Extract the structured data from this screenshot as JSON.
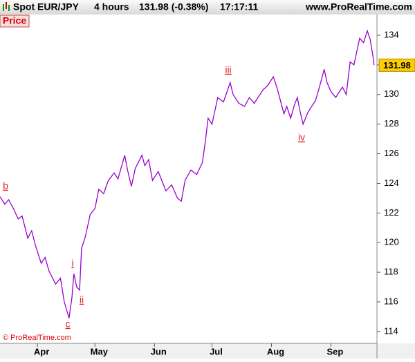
{
  "header": {
    "symbol": "Spot EUR/JPY",
    "period": "4 hours",
    "quote": "131.98 (-0.38%)",
    "time": "17:17:11",
    "site": "www.ProRealTime.com"
  },
  "chart_data": {
    "type": "line",
    "panel_label": "Price",
    "copyright": "© ProRealTime.com",
    "last_price_label": "131.98",
    "annotations": [
      "b",
      "c",
      "i",
      "ii",
      "iii",
      "iv"
    ],
    "color": "#9900cc",
    "x": [
      -19.5,
      -17,
      -15,
      -12.5,
      -10,
      -8,
      -5,
      -3,
      -1,
      2,
      4,
      6,
      9.5,
      12,
      14,
      16.5,
      18,
      19,
      20.5,
      22,
      23,
      25,
      27.5,
      30,
      32,
      34.5,
      37,
      40,
      42,
      45.5,
      47,
      49,
      51,
      54.5,
      56,
      58,
      60,
      63,
      67,
      70,
      73,
      75,
      77,
      80,
      83,
      86,
      87.5,
      89,
      91,
      94,
      97,
      100.5,
      102,
      105,
      108,
      110.5,
      113,
      117.5,
      120,
      123,
      125,
      128.5,
      130,
      132,
      134,
      135.5,
      137,
      138.5,
      141,
      145,
      147,
      149.5,
      151,
      153,
      155.5,
      157,
      159,
      161,
      163,
      165,
      168,
      170,
      172,
      173.5,
      175,
      175.5
    ],
    "values": [
      123.1,
      122.6,
      122.9,
      122.3,
      121.6,
      121.8,
      120.3,
      120.8,
      119.8,
      118.6,
      119.0,
      118.1,
      117.2,
      117.6,
      116.0,
      114.9,
      116.3,
      117.9,
      117.0,
      116.8,
      119.6,
      120.4,
      121.9,
      122.3,
      123.6,
      123.3,
      124.2,
      124.7,
      124.3,
      125.9,
      124.9,
      123.8,
      125.0,
      125.9,
      125.2,
      125.6,
      124.2,
      124.8,
      123.5,
      123.9,
      123.0,
      122.8,
      124.2,
      124.9,
      124.6,
      125.4,
      126.8,
      128.4,
      128.0,
      129.8,
      129.5,
      130.8,
      130.0,
      129.4,
      129.2,
      129.8,
      129.4,
      130.3,
      130.6,
      131.2,
      130.4,
      128.7,
      129.2,
      128.4,
      129.3,
      129.8,
      128.8,
      128.0,
      128.8,
      129.6,
      130.5,
      131.7,
      130.8,
      130.2,
      129.8,
      130.1,
      130.5,
      130.0,
      132.2,
      132.0,
      133.8,
      133.5,
      134.3,
      133.7,
      132.5,
      131.98
    ],
    "xlim": [
      -19.5,
      177
    ],
    "xticks": [
      {
        "value": 0,
        "label": "Apr"
      },
      {
        "value": 30,
        "label": "May"
      },
      {
        "value": 61,
        "label": "Jun"
      },
      {
        "value": 91,
        "label": "Jul"
      },
      {
        "value": 122,
        "label": "Aug"
      },
      {
        "value": 153,
        "label": "Sep"
      }
    ],
    "ylim": [
      113.2,
      135.4
    ],
    "yticks": [
      114,
      116,
      118,
      120,
      122,
      124,
      126,
      128,
      130,
      132,
      134
    ]
  }
}
